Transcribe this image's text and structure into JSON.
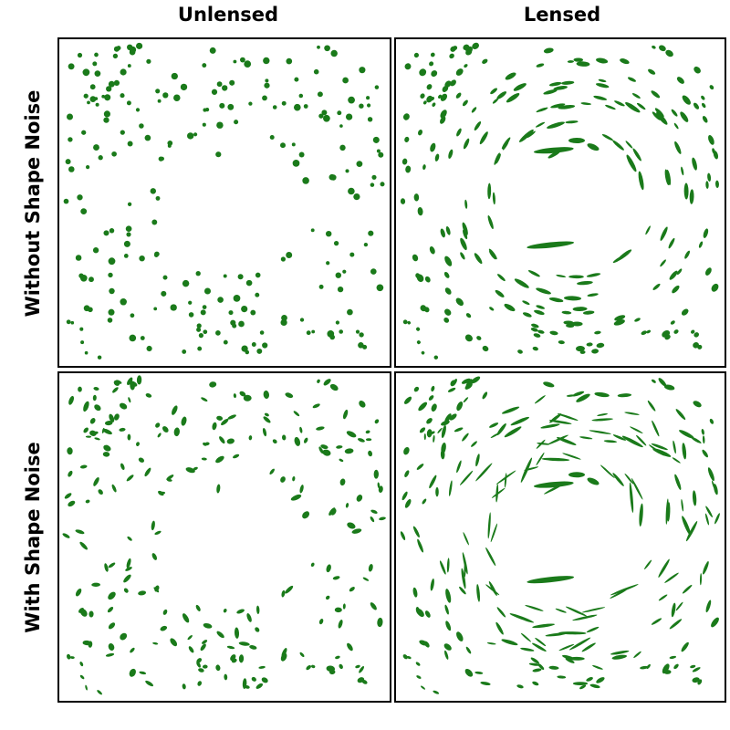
{
  "figure": {
    "columns": [
      "Unlensed",
      "Lensed"
    ],
    "rows": [
      "Without Shape Noise",
      "With Shape Noise"
    ],
    "galaxy_color": "#1a7a1a",
    "background": "#ffffff"
  },
  "panels": [
    {
      "key": "unlensed-without-noise",
      "row": 0,
      "col": 0,
      "lensed": false,
      "shape_noise": false,
      "seed": 11
    },
    {
      "key": "lensed-without-noise",
      "row": 0,
      "col": 1,
      "lensed": true,
      "shape_noise": false,
      "seed": 11
    },
    {
      "key": "unlensed-with-noise",
      "row": 1,
      "col": 0,
      "lensed": false,
      "shape_noise": true,
      "seed": 11
    },
    {
      "key": "lensed-with-noise",
      "row": 1,
      "col": 1,
      "lensed": true,
      "shape_noise": true,
      "seed": 11
    }
  ]
}
